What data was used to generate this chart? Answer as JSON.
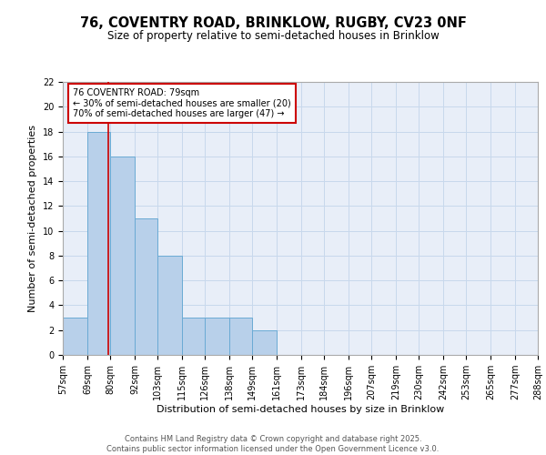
{
  "title1": "76, COVENTRY ROAD, BRINKLOW, RUGBY, CV23 0NF",
  "title2": "Size of property relative to semi-detached houses in Brinklow",
  "xlabel": "Distribution of semi-detached houses by size in Brinklow",
  "ylabel": "Number of semi-detached properties",
  "bin_edges": [
    57,
    69,
    80,
    92,
    103,
    115,
    126,
    138,
    149,
    161,
    173,
    184,
    196,
    207,
    219,
    230,
    242,
    253,
    265,
    277,
    288
  ],
  "bar_heights": [
    3,
    18,
    16,
    11,
    8,
    3,
    3,
    3,
    2,
    0,
    0,
    0,
    0,
    0,
    0,
    0,
    0,
    0,
    0,
    0
  ],
  "bar_color": "#b8d0ea",
  "bar_edgecolor": "#6aaad4",
  "grid_color": "#c8d8ec",
  "background_color": "#e8eef8",
  "red_line_x": 79,
  "red_line_color": "#cc0000",
  "annotation_title": "76 COVENTRY ROAD: 79sqm",
  "annotation_line1": "← 30% of semi-detached houses are smaller (20)",
  "annotation_line2": "70% of semi-detached houses are larger (47) →",
  "annotation_box_edgecolor": "#cc0000",
  "ylim": [
    0,
    22
  ],
  "yticks": [
    0,
    2,
    4,
    6,
    8,
    10,
    12,
    14,
    16,
    18,
    20,
    22
  ],
  "xtick_labels": [
    "57sqm",
    "69sqm",
    "80sqm",
    "92sqm",
    "103sqm",
    "115sqm",
    "126sqm",
    "138sqm",
    "149sqm",
    "161sqm",
    "173sqm",
    "184sqm",
    "196sqm",
    "207sqm",
    "219sqm",
    "230sqm",
    "242sqm",
    "253sqm",
    "265sqm",
    "277sqm",
    "288sqm"
  ],
  "footer_line1": "Contains HM Land Registry data © Crown copyright and database right 2025.",
  "footer_line2": "Contains public sector information licensed under the Open Government Licence v3.0.",
  "title1_fontsize": 10.5,
  "title2_fontsize": 8.5,
  "axis_label_fontsize": 8,
  "tick_fontsize": 7,
  "annotation_fontsize": 7,
  "footer_fontsize": 6
}
